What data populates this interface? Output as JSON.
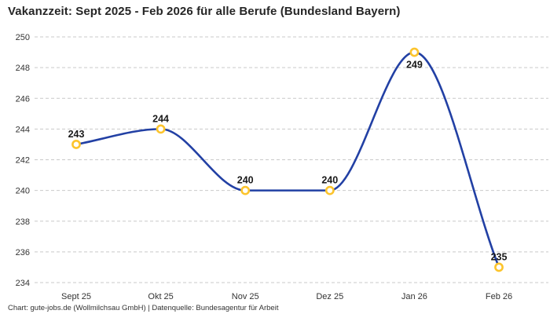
{
  "title": "Vakanzzeit: Sept 2025 - Feb 2026 für alle Berufe (Bundesland Bayern)",
  "footer": {
    "credit": "Chart: gute-jobs.de (Wollmilchsau GmbH) | Datenquelle: Bundesagentur für Arbeit"
  },
  "chart_data": {
    "type": "line",
    "title": "Vakanzzeit: Sept 2025 - Feb 2026 für alle Berufe (Bundesland Bayern)",
    "categories": [
      "Sept 25",
      "Okt 25",
      "Nov 25",
      "Dez 25",
      "Jan 26",
      "Feb 26"
    ],
    "values": [
      243,
      244,
      240,
      240,
      249,
      235
    ],
    "data_labels": [
      "243",
      "244",
      "240",
      "240",
      "249",
      "235"
    ],
    "label_placement": [
      "above",
      "above",
      "above",
      "above",
      "below",
      "above"
    ],
    "ylim": [
      234,
      250
    ],
    "yticks": [
      234,
      236,
      238,
      240,
      242,
      244,
      246,
      248,
      250
    ],
    "ytick_step": 2,
    "xlabel": "",
    "ylabel": "",
    "legend": "none",
    "grid": "horizontal-dashed",
    "curve": "monotone-smooth",
    "colors": {
      "line": "#2240a4",
      "marker_ring": "#fcc42c",
      "marker_fill": "#ffffff",
      "grid": "#c9c9c9",
      "tick_text": "#333333",
      "data_label_text": "#1a1a1a",
      "title_text": "#262626",
      "footer_text": "#333333",
      "background": "#ffffff"
    }
  }
}
